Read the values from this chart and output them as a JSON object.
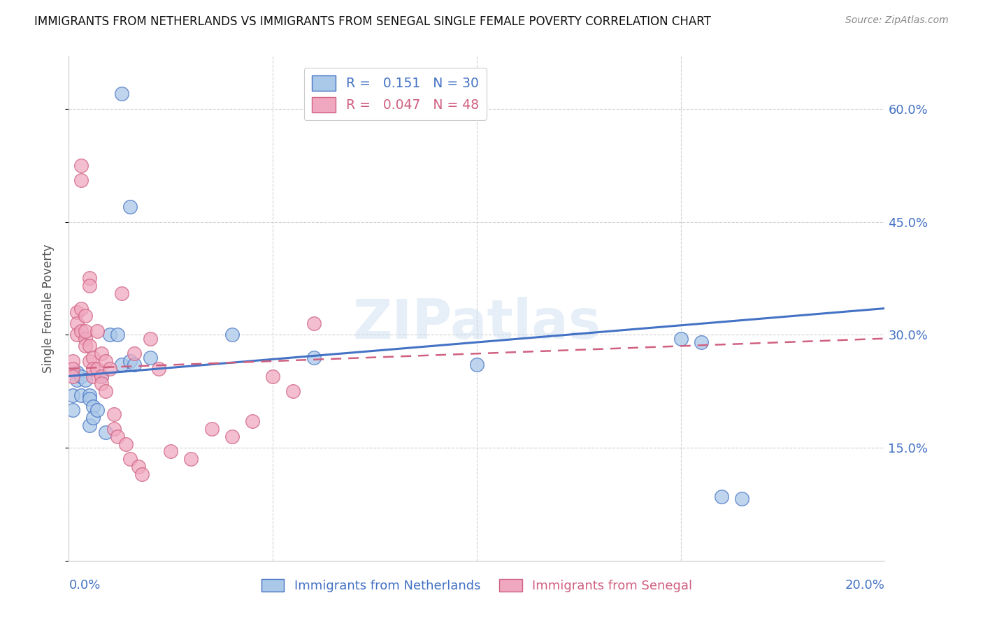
{
  "title": "IMMIGRANTS FROM NETHERLANDS VS IMMIGRANTS FROM SENEGAL SINGLE FEMALE POVERTY CORRELATION CHART",
  "source": "Source: ZipAtlas.com",
  "ylabel": "Single Female Poverty",
  "y_ticks": [
    0.0,
    0.15,
    0.3,
    0.45,
    0.6
  ],
  "y_tick_labels": [
    "",
    "15.0%",
    "30.0%",
    "45.0%",
    "60.0%"
  ],
  "xlim": [
    0.0,
    0.2
  ],
  "ylim": [
    0.0,
    0.67
  ],
  "legend1_label": "R =   0.151   N = 30",
  "legend2_label": "R =   0.047   N = 48",
  "nl_color": "#aac8e8",
  "sn_color": "#f0a8c0",
  "nl_line_color": "#4472c4",
  "sn_line_color": "#d06080",
  "watermark": "ZIPatlas",
  "netherlands_x": [
    0.001,
    0.001,
    0.013,
    0.015,
    0.002,
    0.002,
    0.003,
    0.003,
    0.004,
    0.005,
    0.005,
    0.005,
    0.006,
    0.006,
    0.007,
    0.008,
    0.009,
    0.01,
    0.012,
    0.013,
    0.015,
    0.016,
    0.02,
    0.04,
    0.06,
    0.1,
    0.15,
    0.155,
    0.16,
    0.165
  ],
  "netherlands_y": [
    0.22,
    0.2,
    0.62,
    0.47,
    0.25,
    0.24,
    0.245,
    0.22,
    0.24,
    0.22,
    0.215,
    0.18,
    0.205,
    0.19,
    0.2,
    0.245,
    0.17,
    0.3,
    0.3,
    0.26,
    0.265,
    0.26,
    0.27,
    0.3,
    0.27,
    0.26,
    0.295,
    0.29,
    0.085,
    0.082
  ],
  "senegal_x": [
    0.001,
    0.001,
    0.001,
    0.002,
    0.002,
    0.002,
    0.003,
    0.003,
    0.003,
    0.003,
    0.004,
    0.004,
    0.004,
    0.004,
    0.005,
    0.005,
    0.005,
    0.005,
    0.006,
    0.006,
    0.006,
    0.007,
    0.007,
    0.008,
    0.008,
    0.008,
    0.009,
    0.009,
    0.01,
    0.011,
    0.011,
    0.012,
    0.013,
    0.014,
    0.015,
    0.016,
    0.017,
    0.018,
    0.02,
    0.022,
    0.025,
    0.03,
    0.035,
    0.04,
    0.045,
    0.05,
    0.055,
    0.06
  ],
  "senegal_y": [
    0.265,
    0.255,
    0.245,
    0.33,
    0.315,
    0.3,
    0.525,
    0.505,
    0.335,
    0.305,
    0.295,
    0.325,
    0.305,
    0.285,
    0.375,
    0.365,
    0.285,
    0.265,
    0.245,
    0.27,
    0.255,
    0.305,
    0.255,
    0.275,
    0.245,
    0.235,
    0.265,
    0.225,
    0.255,
    0.195,
    0.175,
    0.165,
    0.355,
    0.155,
    0.135,
    0.275,
    0.125,
    0.115,
    0.295,
    0.255,
    0.145,
    0.135,
    0.175,
    0.165,
    0.185,
    0.245,
    0.225,
    0.315
  ],
  "nl_R": 0.151,
  "sn_R": 0.047,
  "nl_line_y0": 0.245,
  "nl_line_y1": 0.335,
  "sn_line_y0": 0.255,
  "sn_line_y1": 0.295
}
